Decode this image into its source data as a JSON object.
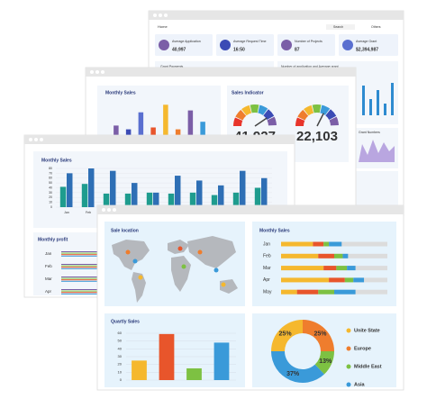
{
  "back_window": {
    "nav": "Home",
    "search": "Search",
    "user": "Others",
    "stats": [
      {
        "label": "Average Application",
        "value": "40,997"
      },
      {
        "label": "Average Request Time",
        "value": "16:50"
      },
      {
        "label": "Number of Projects",
        "value": "87"
      },
      {
        "label": "Average Grant",
        "value": "$2,394,987"
      }
    ],
    "panels": {
      "grant_payments": "Grant Payments",
      "applications": "Number of application and Average grant",
      "grant_numbers": "Grant Numbers"
    }
  },
  "middle_window": {
    "monthly_sales": {
      "title": "Monthly Sales",
      "ylim": [
        0,
        100
      ],
      "values": [
        30,
        20,
        65,
        25,
        85,
        20,
        70,
        40
      ],
      "colors": [
        "#7b5ea7",
        "#3b4bb5",
        "#5a6fd0",
        "#e8552b",
        "#f5b82e",
        "#ef7d2d",
        "#7b5ea7",
        "#3a9ad9"
      ]
    },
    "sales_indicator": {
      "title": "Sales Indicator",
      "gauges": [
        "41,927",
        "22,103"
      ]
    }
  },
  "left_window": {
    "monthly_sales": {
      "title": "Monthly Sales",
      "categories": [
        "Jan",
        "Feb",
        "Mar",
        "Apr",
        null,
        null,
        null,
        null,
        null,
        null
      ],
      "ylim": [
        0,
        80
      ],
      "yticks": [
        0,
        10,
        20,
        30,
        40,
        50,
        60,
        70,
        80
      ],
      "series": [
        {
          "color": "#1e9c8e",
          "values": [
            42,
            48,
            28,
            28,
            30,
            28,
            30,
            25,
            30,
            40
          ]
        },
        {
          "color": "#2e6fb5",
          "values": [
            70,
            80,
            75,
            50,
            30,
            65,
            55,
            45,
            75,
            60
          ]
        }
      ]
    },
    "monthly_profit": {
      "title": "Monthly profit",
      "categories": [
        "Jan",
        "Feb",
        "Mar",
        "Apr"
      ]
    }
  },
  "front_window": {
    "sale_location": {
      "title": "Sale location"
    },
    "monthly_sales": {
      "title": "Monthly Sales",
      "categories": [
        "Jan",
        "Feb",
        "Mar",
        "Apr",
        "May"
      ],
      "xlim": [
        0,
        100
      ],
      "series": [
        {
          "color": "#f5b82e",
          "values": [
            30,
            35,
            40,
            45,
            15
          ]
        },
        {
          "color": "#e8552b",
          "values": [
            10,
            15,
            12,
            15,
            20
          ]
        },
        {
          "color": "#7dc142",
          "values": [
            5,
            8,
            10,
            8,
            15
          ]
        },
        {
          "color": "#3a9ad9",
          "values": [
            12,
            5,
            8,
            10,
            20
          ]
        }
      ]
    },
    "quarterly_sales": {
      "title": "Quartly Sales",
      "ylim": [
        0,
        60
      ],
      "yticks": [
        0,
        10,
        20,
        30,
        40,
        50,
        60
      ],
      "values": [
        25,
        59,
        15,
        48
      ],
      "colors": [
        "#f5b82e",
        "#e8552b",
        "#7dc142",
        "#3a9ad9"
      ]
    },
    "market_share": {
      "values": [
        25,
        25,
        13,
        37
      ],
      "value_labels": [
        "25%",
        "25%",
        "13%",
        "37%"
      ],
      "labels": [
        "Unite State",
        "Europe",
        "Middle East",
        "Asia"
      ],
      "colors": [
        "#f5b82e",
        "#ef7d2d",
        "#7dc142",
        "#3a9ad9"
      ]
    }
  }
}
